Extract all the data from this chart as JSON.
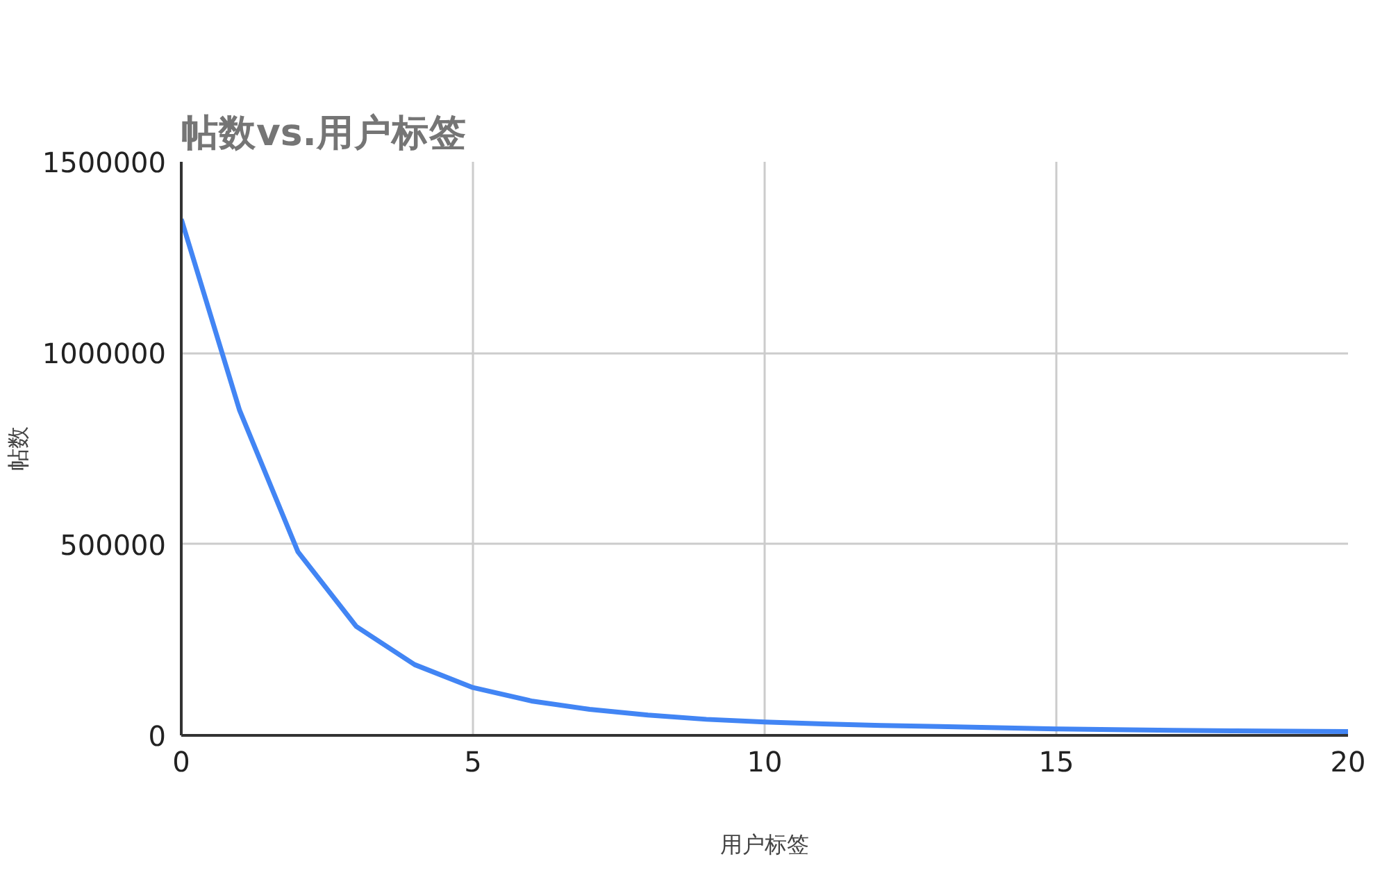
{
  "chart_data": {
    "type": "line",
    "title": "帖数vs.用户标签",
    "xlabel": "用户标签",
    "ylabel": "帖数",
    "x": [
      0,
      1,
      2,
      3,
      4,
      5,
      6,
      7,
      8,
      9,
      10,
      11,
      12,
      13,
      14,
      15,
      16,
      17,
      18,
      19,
      20
    ],
    "series": [
      {
        "color": "#4285f4",
        "values": [
          1350000,
          850000,
          480000,
          285000,
          185000,
          125000,
          90000,
          68000,
          53000,
          42000,
          35000,
          30000,
          26000,
          23000,
          20000,
          17000,
          15000,
          13000,
          12000,
          11000,
          10000
        ]
      }
    ],
    "xlim": [
      0,
      20
    ],
    "xticks": [
      0,
      5,
      10,
      15,
      20
    ],
    "ylim": [
      0,
      1500000
    ],
    "yticks": [
      0,
      500000,
      1000000,
      1500000
    ],
    "grid": true
  }
}
